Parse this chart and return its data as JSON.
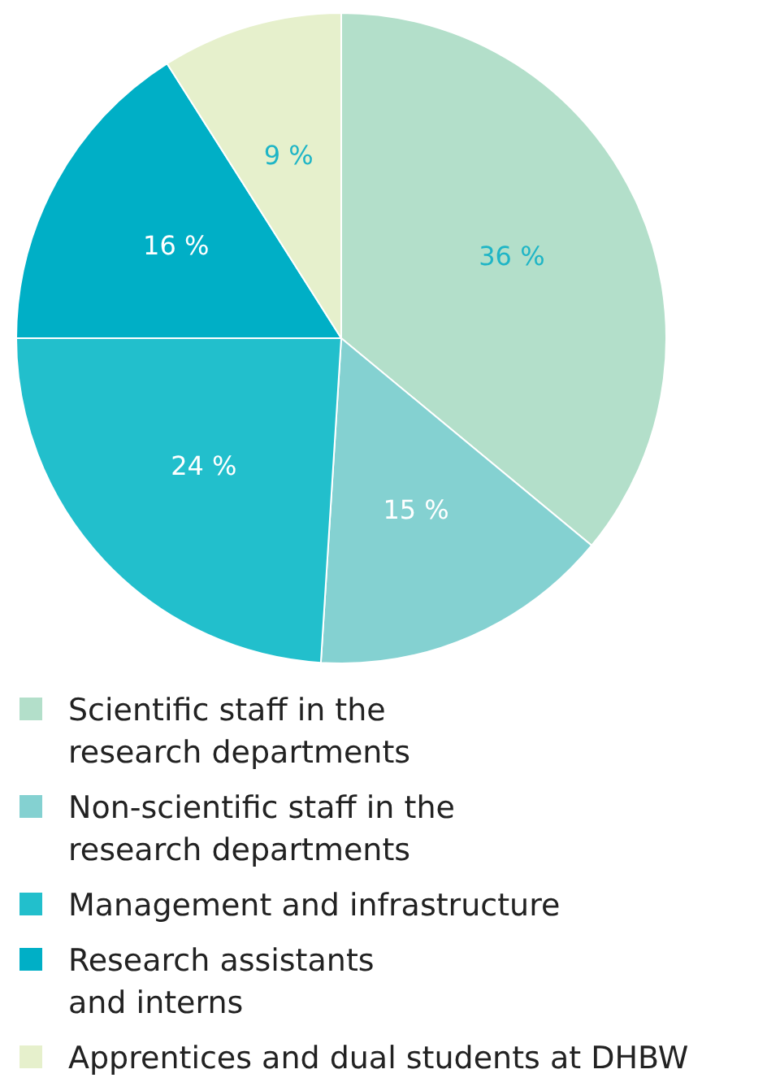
{
  "chart_data": {
    "type": "pie",
    "categories": [
      "Scientific staff in the\nresearch departments",
      "Non-scientific staff in the\nresearch departments",
      "Management and infrastructure",
      "Research assistants\nand interns",
      "Apprentices and dual students at DHBW"
    ],
    "values": [
      36,
      15,
      24,
      16,
      9
    ],
    "value_labels": [
      "36 %",
      "15 %",
      "24 %",
      "16 %",
      "9 %"
    ],
    "colors": [
      "#b3dfca",
      "#84d1d1",
      "#22bfcc",
      "#00afc6",
      "#e6f0cc"
    ],
    "legend": "bottom"
  }
}
